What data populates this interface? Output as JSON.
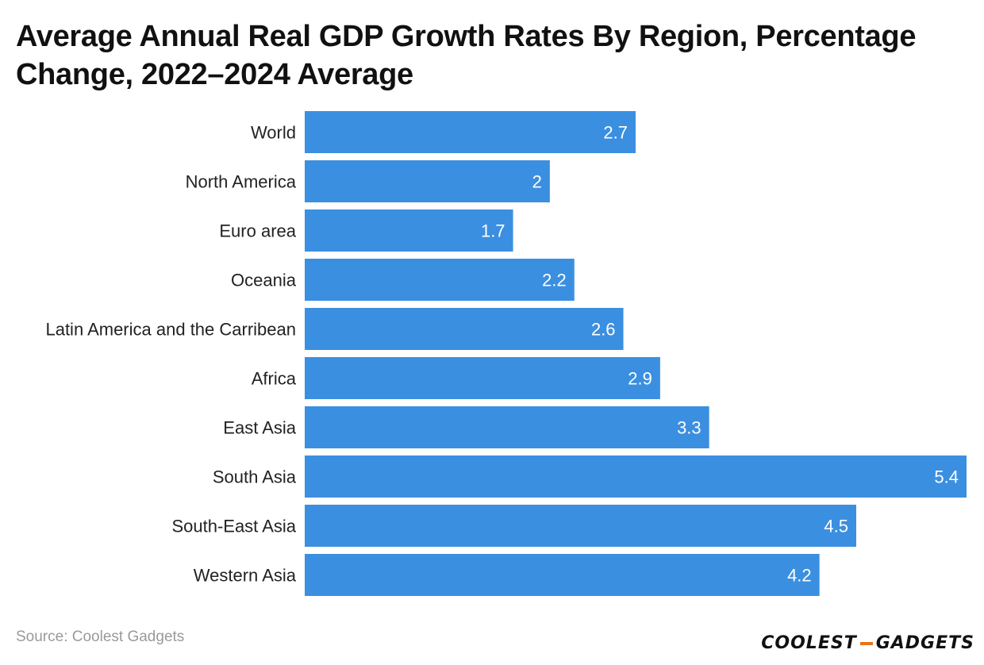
{
  "chart_data": {
    "type": "bar",
    "orientation": "horizontal",
    "title": "Average Annual Real GDP Growth Rates By Region, Percentage Change, 2022–2024 Average",
    "categories": [
      "World",
      "North America",
      "Euro area",
      "Oceania",
      "Latin America and the Carribean",
      "Africa",
      "East Asia",
      "South Asia",
      "South-East Asia",
      "Western Asia"
    ],
    "values": [
      2.7,
      2,
      1.7,
      2.2,
      2.6,
      2.9,
      3.3,
      5.4,
      4.5,
      4.2
    ],
    "value_labels": [
      "2.7",
      "2",
      "1.7",
      "2.2",
      "2.6",
      "2.9",
      "3.3",
      "5.4",
      "4.5",
      "4.2"
    ],
    "xlabel": "",
    "ylabel": "",
    "xlim": [
      0,
      5.4
    ],
    "grid": false,
    "bar_color": "#3b8fe0"
  },
  "footer": {
    "source": "Source: Coolest Gadgets",
    "logo_left": "COOLEST",
    "logo_right": "GADGETS",
    "logo_dash_color": "#e8731c"
  }
}
